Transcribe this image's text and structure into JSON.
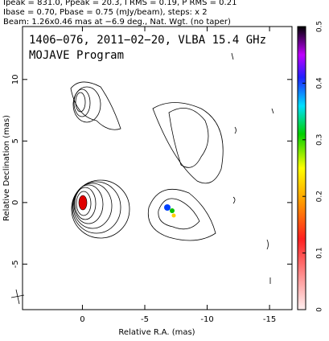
{
  "header": [
    "Ipeak = 831.0, Ppeak = 20.3, I RMS = 0.19, P RMS = 0.21",
    "Ibase = 0.70, Pbase = 0.75 (mJy/beam), steps: x 2",
    "Beam: 1.26x0.46 mas at −6.9 deg., Nat. Wgt. (no taper)"
  ],
  "chart_data": {
    "type": "contour",
    "title": "1406−076, 2011−02−20, VLBA 15.4 GHz",
    "subtitle": "MOJAVE Program",
    "x_label": "Relative R.A. (mas)",
    "y_label": "Relative Declination (mas)",
    "xlim": [
      4.8,
      -16.8
    ],
    "xticks": [
      0,
      -5,
      -10,
      -15
    ],
    "ylim": [
      -8.7,
      14.3
    ],
    "yticks": [
      -5,
      0,
      5,
      10
    ],
    "colorbar": {
      "lim": [
        0,
        0.5
      ],
      "ticks": [
        0,
        0.1,
        0.2,
        0.3,
        0.4,
        0.5
      ]
    }
  }
}
